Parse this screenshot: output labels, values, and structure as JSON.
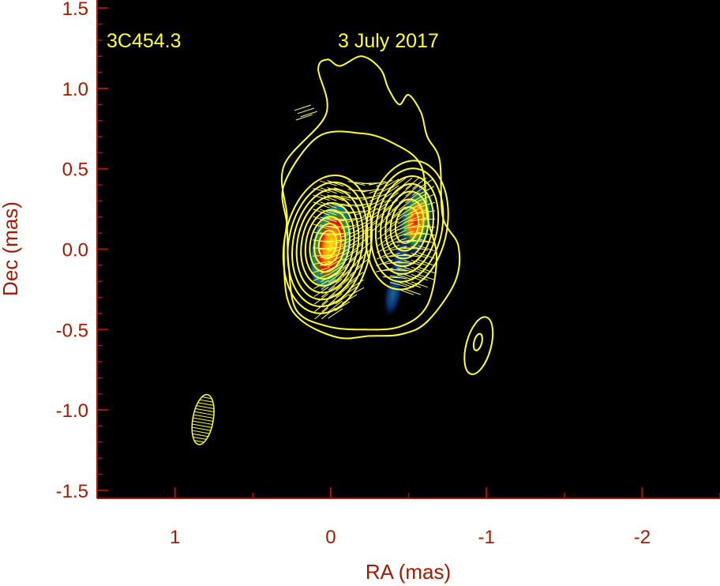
{
  "chart_data": {
    "type": "heatmap",
    "title": "",
    "xlabel": "RA (mas)",
    "ylabel": "Dec (mas)",
    "xlim": [
      1.5,
      -2.5
    ],
    "ylim": [
      -1.55,
      1.55
    ],
    "x_axis_reversed": true,
    "x_ticks": [
      1,
      0,
      -1,
      -2
    ],
    "x_tick_labels": [
      "1",
      "0",
      "-1",
      "-2"
    ],
    "y_ticks": [
      1.5,
      1.0,
      0.5,
      0.0,
      -0.5,
      -1.0,
      -1.5
    ],
    "y_tick_labels": [
      "1.5",
      "1.0",
      "0.5",
      "0.0",
      "-0.5",
      "-1.0",
      "-1.5"
    ],
    "annotations": {
      "source": "3C454.3",
      "epoch": "3 July 2017"
    },
    "background_color": "#000000",
    "contour_color": "#ffff33",
    "axis_color": "#a31a00",
    "colormap": [
      "#000000",
      "#0b2a6b",
      "#1a6a9a",
      "#1f9a4a",
      "#f2e600",
      "#ff8a00",
      "#e01000"
    ],
    "components": [
      {
        "ra": 0.0,
        "dec": 0.02,
        "peak": 1.0
      },
      {
        "ra": -0.55,
        "dec": 0.18,
        "peak": 0.75
      },
      {
        "ra": -0.45,
        "dec": -0.08,
        "peak": 0.35
      },
      {
        "ra": -0.4,
        "dec": -0.28,
        "peak": 0.25
      }
    ],
    "isolated_feature": {
      "ra": -0.95,
      "dec": -0.6
    },
    "beam": {
      "ra": 0.82,
      "dec": -1.06
    }
  }
}
